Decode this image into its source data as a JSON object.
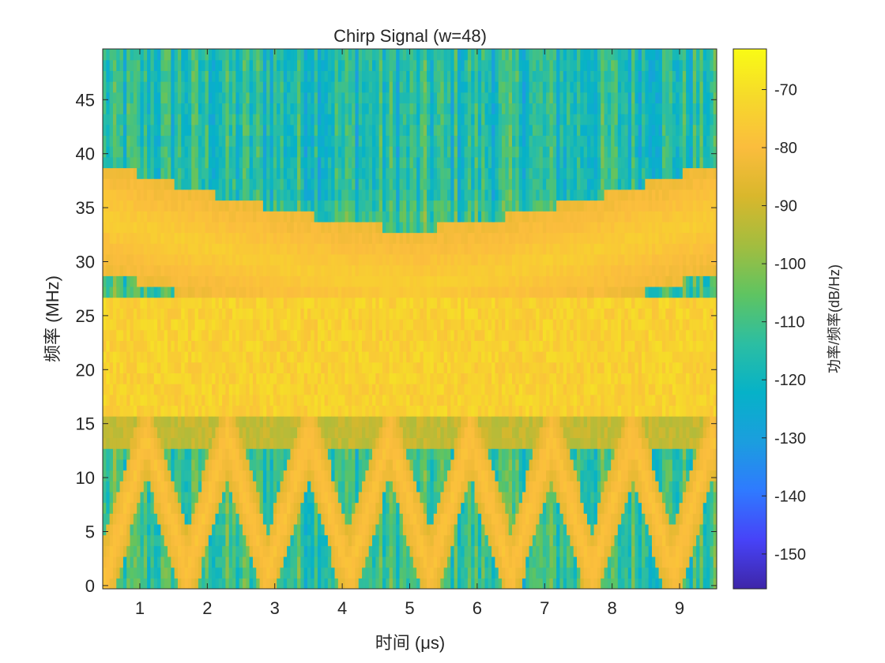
{
  "chart_data": {
    "type": "heatmap",
    "title": "Chirp Signal (w=48)",
    "xlabel": "时间 (μs)",
    "ylabel": "频率 (MHz)",
    "xlim": [
      0.45,
      9.55
    ],
    "ylim": [
      -0.3,
      49.7
    ],
    "x_ticks": [
      1,
      2,
      3,
      4,
      5,
      6,
      7,
      8,
      9
    ],
    "y_ticks": [
      0,
      5,
      10,
      15,
      20,
      25,
      30,
      35,
      40,
      45
    ],
    "colorbar": {
      "label": "功率/频率(dB/Hz)",
      "range": [
        -156,
        -63
      ],
      "ticks": [
        -70,
        -80,
        -90,
        -100,
        -110,
        -120,
        -130,
        -140,
        -150
      ],
      "colormap": "parula",
      "colors": [
        "#3e26a8",
        "#4743f8",
        "#2f7aff",
        "#1b9ede",
        "#06b2c8",
        "#2cbea2",
        "#5fc461",
        "#a3bd3f",
        "#d9b72c",
        "#fbbd3d",
        "#f6d92b",
        "#f9fb15"
      ]
    },
    "signal": {
      "description_units": "MHz vs μs",
      "bands": [
        {
          "name": "triangle_sweep",
          "low_mhz": 1,
          "high_mhz": 14,
          "period_us": 1.2,
          "level_db": -78
        },
        {
          "name": "converging_upper",
          "start_mhz": 34,
          "end_mhz": 28,
          "center_us": 5.0,
          "level_db": -75
        },
        {
          "name": "constant_band",
          "low_mhz": 15.5,
          "high_mhz": 27,
          "level_db": -72
        }
      ],
      "noise_floor_db": -112
    },
    "grid": false
  }
}
